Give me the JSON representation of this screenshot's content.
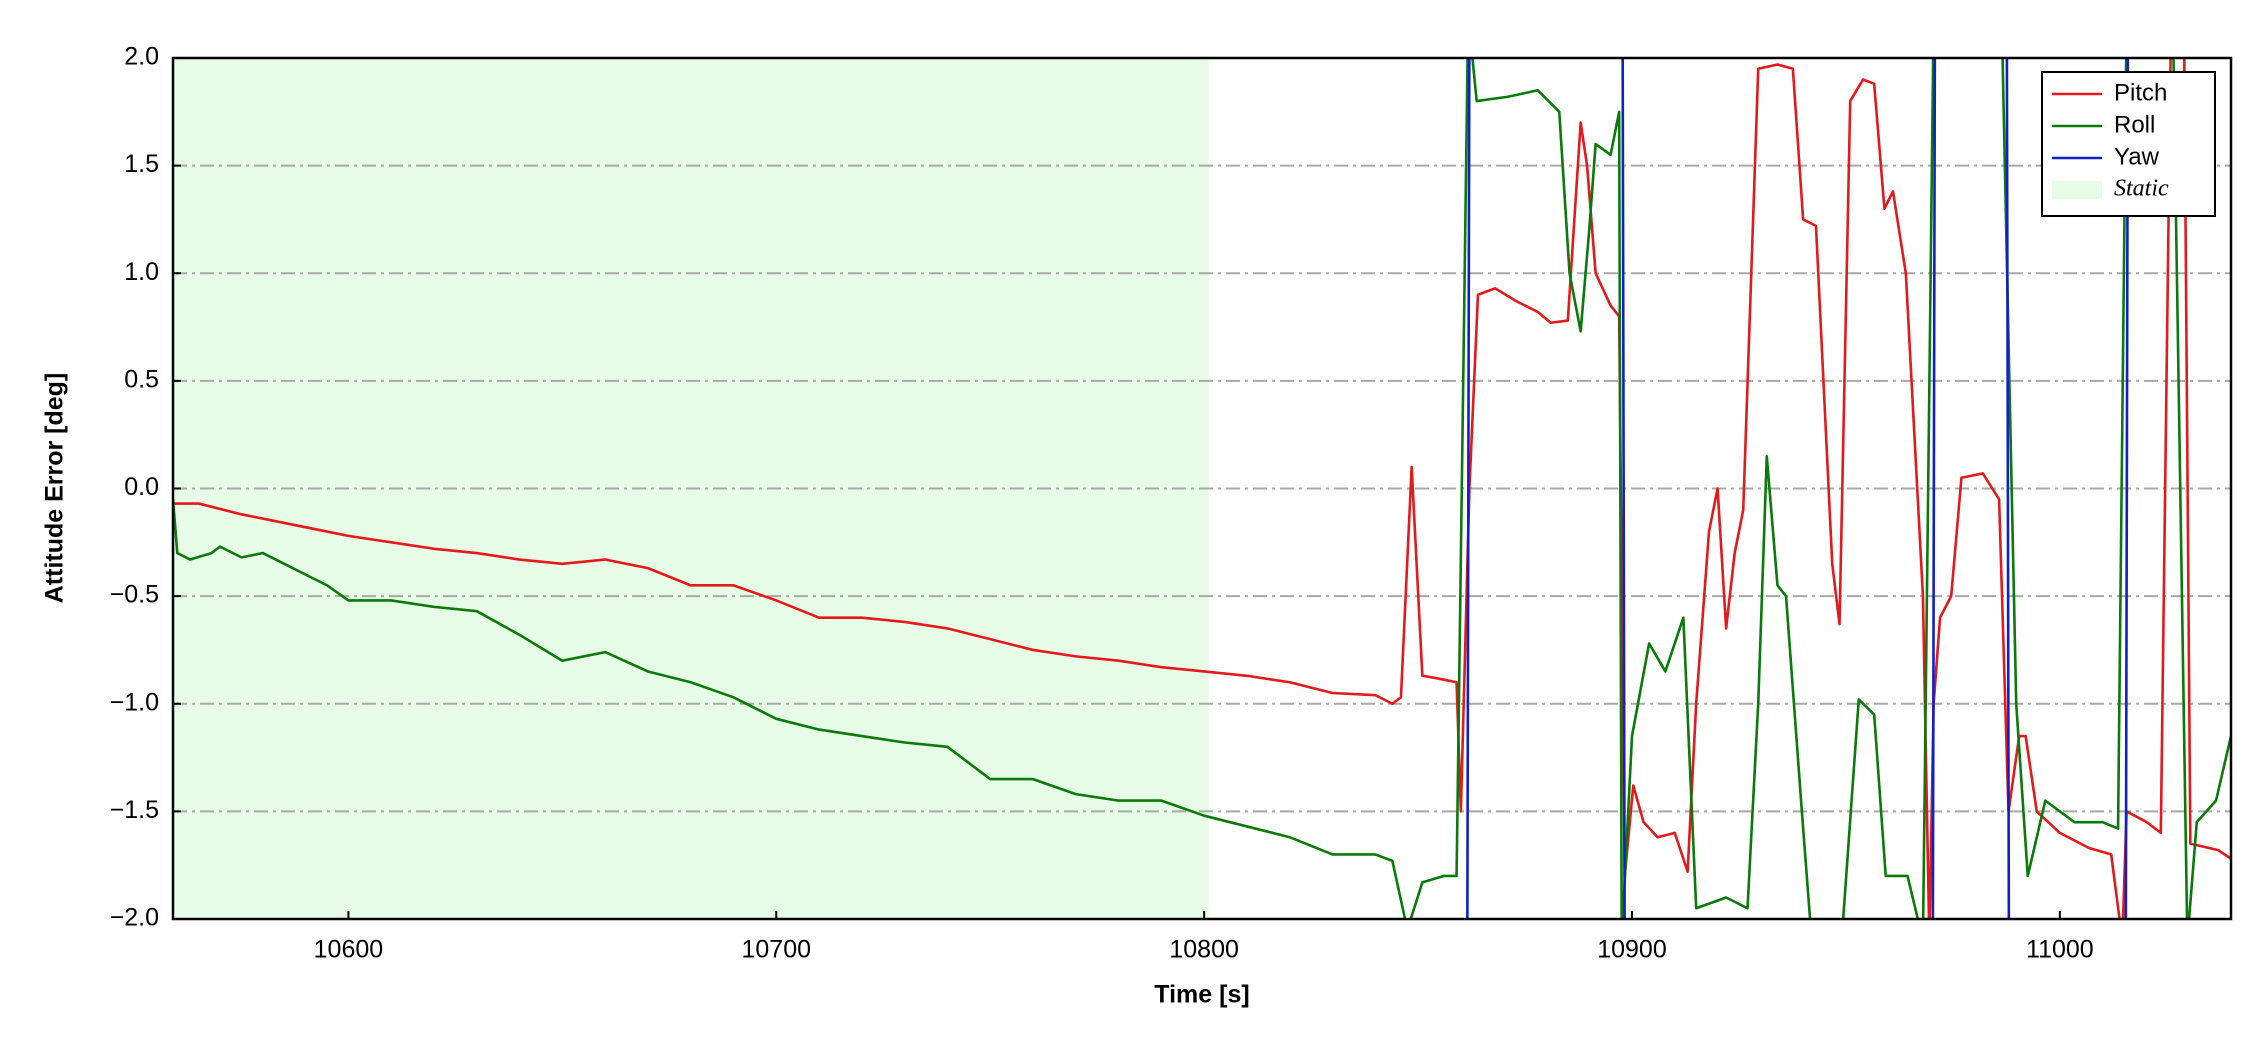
{
  "chart_data": {
    "type": "line",
    "xlabel": "Time [s]",
    "ylabel": "Attitude Error [deg]",
    "xlim": [
      10559,
      11040
    ],
    "ylim": [
      -2,
      2
    ],
    "xticks": [
      10600,
      10700,
      10800,
      10900,
      11000
    ],
    "yticks": [
      {
        "value": -2,
        "label": "−2.0"
      },
      {
        "value": -1.5,
        "label": "−1.5"
      },
      {
        "value": -1,
        "label": "−1.0"
      },
      {
        "value": -0.5,
        "label": "−0.5"
      },
      {
        "value": 0,
        "label": "0.0"
      },
      {
        "value": 0.5,
        "label": "0.5"
      },
      {
        "value": 1,
        "label": "1.0"
      },
      {
        "value": 1.5,
        "label": "1.5"
      },
      {
        "value": 2,
        "label": "2.0"
      }
    ],
    "grid": true,
    "legend": "upper right",
    "static": {
      "label": "Static",
      "range": [
        10559,
        10801
      ],
      "color": "#e6fce6"
    },
    "series": [
      {
        "name": "Pitch",
        "color": "#e31a1c",
        "x": [
          10559,
          10565,
          10575,
          10585,
          10595,
          10600,
          10610,
          10620,
          10630,
          10640,
          10650,
          10660,
          10670,
          10680,
          10690,
          10700,
          10710,
          10720,
          10730,
          10740,
          10750,
          10760,
          10770,
          10780,
          10790,
          10800,
          10810,
          10820,
          10830,
          10840,
          10844,
          10846,
          10848.5,
          10851,
          10854,
          10859,
          10860,
          10862,
          10864,
          10868,
          10873,
          10878,
          10881,
          10885,
          10888,
          10889.5,
          10891.5,
          10895,
          10897,
          10898.3,
          10900.3,
          10902.7,
          10906,
          10910,
          10913,
          10915,
          10918,
          10920,
          10922,
          10924,
          10926,
          10929.5,
          10934,
          10937.6,
          10940,
          10943,
          10946.8,
          10948.5,
          10951,
          10954,
          10956.6,
          10959,
          10961,
          10964,
          10968,
          10969.5,
          10970.5,
          10972,
          10974.6,
          10977,
          10982,
          10985.8,
          10988,
          10990.5,
          10992,
          10994.6,
          11000,
          11006.8,
          11012,
          11014.6,
          11015.6,
          11020.3,
          11023.6,
          11026,
          11029,
          11030.5,
          11037,
          11040
        ],
        "values": [
          -0.07,
          -0.07,
          -0.12,
          -0.16,
          -0.2,
          -0.22,
          -0.25,
          -0.28,
          -0.3,
          -0.33,
          -0.35,
          -0.33,
          -0.37,
          -0.45,
          -0.45,
          -0.52,
          -0.6,
          -0.6,
          -0.62,
          -0.65,
          -0.7,
          -0.75,
          -0.78,
          -0.8,
          -0.83,
          -0.85,
          -0.87,
          -0.9,
          -0.95,
          -0.96,
          -1.0,
          -0.97,
          0.1,
          -0.87,
          -0.88,
          -0.9,
          -1.5,
          0,
          0.9,
          0.93,
          0.87,
          0.82,
          0.77,
          0.78,
          1.7,
          1.5,
          1.0,
          0.85,
          0.8,
          -1.8,
          -1.38,
          -1.55,
          -1.62,
          -1.6,
          -1.78,
          -1.0,
          -0.2,
          0.0,
          -0.65,
          -0.3,
          -0.1,
          1.95,
          1.97,
          1.95,
          1.25,
          1.22,
          -0.35,
          -0.63,
          1.8,
          1.9,
          1.88,
          1.3,
          1.38,
          1.0,
          -0.5,
          -2.1,
          -1.0,
          -0.6,
          -0.5,
          0.05,
          0.07,
          -0.05,
          -1.5,
          -1.15,
          -1.15,
          -1.5,
          -1.6,
          -1.67,
          -1.7,
          -2.1,
          -1.5,
          -1.55,
          -1.6,
          2.2,
          2.2,
          -1.65,
          -1.68,
          -1.72
        ]
      },
      {
        "name": "Roll",
        "color": "#0a7a0a",
        "x": [
          10559,
          10560,
          10563,
          10568,
          10570,
          10575,
          10580,
          10585,
          10590,
          10595,
          10600,
          10610,
          10620,
          10630,
          10640,
          10650,
          10660,
          10670,
          10680,
          10690,
          10700,
          10710,
          10720,
          10730,
          10740,
          10750,
          10760,
          10770,
          10780,
          10790,
          10800,
          10810,
          10820,
          10830,
          10840,
          10844,
          10847.5,
          10851,
          10856,
          10859,
          10861.7,
          10863.7,
          10871,
          10878,
          10883,
          10885.4,
          10888,
          10890,
          10891.5,
          10895,
          10897,
          10897.6,
          10900,
          10904,
          10907.8,
          10912,
          10915,
          10922,
          10927,
          10929.5,
          10931.5,
          10934,
          10936,
          10939.7,
          10942,
          10949,
          10953,
          10956.6,
          10959.3,
          10964.4,
          10968,
          10970.5,
          10986.4,
          10989.8,
          10992.5,
          10996.6,
          11003.4,
          11010,
          11013.6,
          11015.6,
          11026.4,
          11029.8,
          11032,
          11036.5,
          11040
        ],
        "values": [
          -0.05,
          -0.3,
          -0.33,
          -0.3,
          -0.27,
          -0.32,
          -0.3,
          -0.35,
          -0.4,
          -0.45,
          -0.52,
          -0.52,
          -0.55,
          -0.57,
          -0.68,
          -0.8,
          -0.76,
          -0.85,
          -0.9,
          -0.97,
          -1.07,
          -1.12,
          -1.15,
          -1.18,
          -1.2,
          -1.35,
          -1.35,
          -1.42,
          -1.45,
          -1.45,
          -1.52,
          -1.57,
          -1.62,
          -1.7,
          -1.7,
          -1.73,
          -2.05,
          -1.83,
          -1.8,
          -1.8,
          2.2,
          1.8,
          1.82,
          1.85,
          1.75,
          1.0,
          0.73,
          1.2,
          1.6,
          1.55,
          1.75,
          -2.1,
          -1.15,
          -0.72,
          -0.85,
          -0.6,
          -1.95,
          -1.9,
          -1.95,
          -1.0,
          0.15,
          -0.45,
          -0.5,
          -1.5,
          -2.1,
          -2.1,
          -0.98,
          -1.05,
          -1.8,
          -1.8,
          -2.1,
          2.2,
          2.2,
          -1.0,
          -1.8,
          -1.45,
          -1.55,
          -1.55,
          -1.58,
          2.2,
          2.2,
          -2.1,
          -1.55,
          -1.45,
          -1.15
        ]
      },
      {
        "name": "Yaw",
        "color": "#1020c8",
        "x": [
          10559,
          10861.5,
          10862,
          10897.8,
          10898.3,
          10970.3,
          10970.8,
          10987.6,
          10988.1,
          11015.4,
          11015.9,
          11040
        ],
        "values": [
          -2.2,
          -2.2,
          2.2,
          2.2,
          -2.2,
          -2.2,
          2.2,
          2.2,
          -2.2,
          -2.2,
          2.2,
          2.2
        ]
      }
    ]
  }
}
